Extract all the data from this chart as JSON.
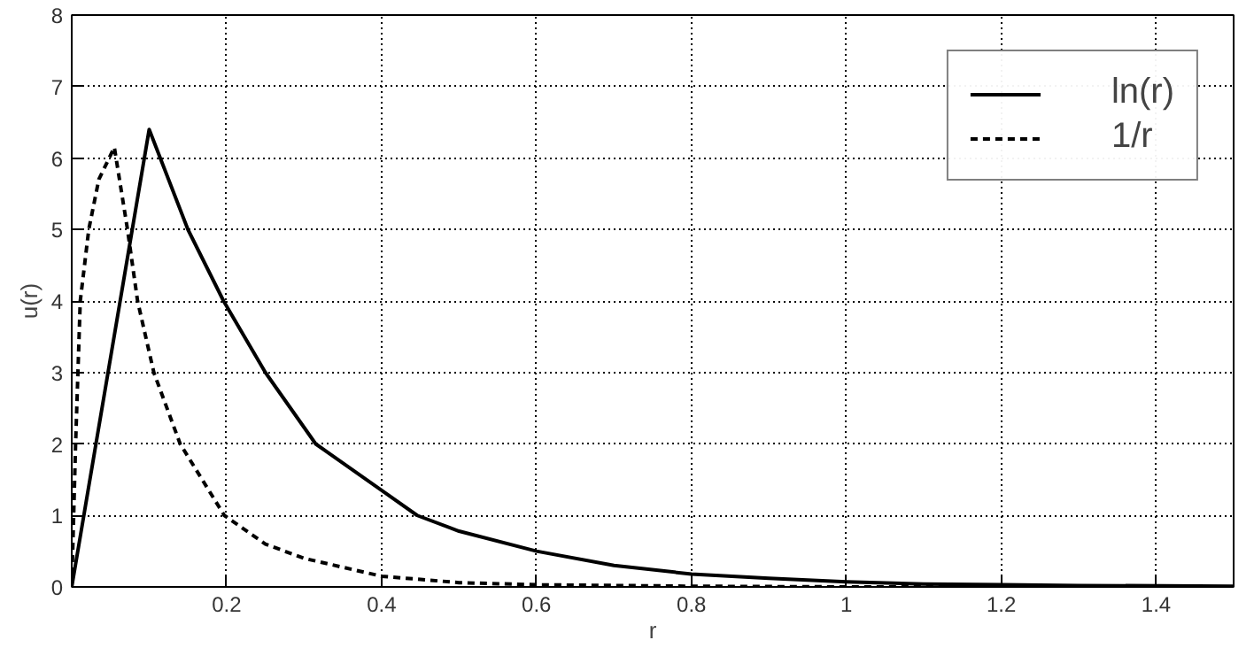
{
  "chart_data": {
    "type": "line",
    "xlabel": "r",
    "ylabel": "u(r)",
    "xlim": [
      0,
      1.5
    ],
    "ylim": [
      0,
      8
    ],
    "xticks": [
      0.2,
      0.4,
      0.6,
      0.8,
      1,
      1.2,
      1.4
    ],
    "yticks": [
      0,
      1,
      2,
      3,
      4,
      5,
      6,
      7,
      8
    ],
    "grid": true,
    "legend": "top right",
    "series": [
      {
        "name": "ln(r)",
        "color": "#000000",
        "line_style": "solid",
        "x": [
          0,
          0.1,
          0.15,
          0.196,
          0.25,
          0.315,
          0.4,
          0.446,
          0.5,
          0.6,
          0.7,
          0.8,
          0.9,
          1.0,
          1.1,
          1.2,
          1.3,
          1.5
        ],
        "values": [
          0,
          6.4,
          5.0,
          4.0,
          3.0,
          2.0,
          1.35,
          1.0,
          0.78,
          0.5,
          0.3,
          0.18,
          0.12,
          0.07,
          0.04,
          0.03,
          0.02,
          0.01
        ]
      },
      {
        "name": "1/r",
        "color": "#000000",
        "line_style": "dashed",
        "x": [
          0,
          0.005,
          0.011,
          0.022,
          0.035,
          0.055,
          0.072,
          0.085,
          0.106,
          0.14,
          0.197,
          0.25,
          0.3,
          0.4,
          0.5,
          0.6,
          0.8,
          1.0,
          1.5
        ],
        "values": [
          0,
          2.0,
          4.0,
          5.0,
          5.7,
          6.15,
          5.0,
          4.0,
          3.0,
          2.0,
          1.0,
          0.6,
          0.4,
          0.15,
          0.06,
          0.03,
          0.01,
          0,
          0
        ]
      }
    ]
  }
}
